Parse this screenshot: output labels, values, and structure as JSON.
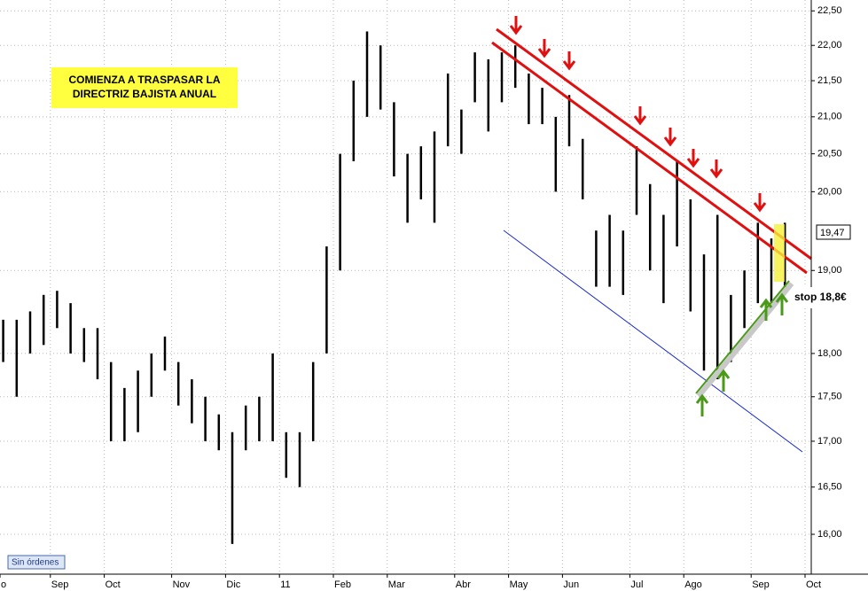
{
  "chart_data": {
    "type": "range",
    "log_scale": true,
    "grid": true,
    "color": "#000000",
    "ylim": [
      15.59,
      22.66
    ],
    "yticks": [
      {
        "value": 22.5,
        "label": "22,50"
      },
      {
        "value": 22,
        "label": "22,00"
      },
      {
        "value": 21.5,
        "label": "21,50"
      },
      {
        "value": 21,
        "label": "21,00"
      },
      {
        "value": 20.5,
        "label": "20,50"
      },
      {
        "value": 20,
        "label": "20,00"
      },
      {
        "value": 19,
        "label": "19,00"
      },
      {
        "value": 18,
        "label": "18,00"
      },
      {
        "value": 17.5,
        "label": "17,50"
      },
      {
        "value": 17,
        "label": "17,00"
      },
      {
        "value": 16.5,
        "label": "16,50"
      },
      {
        "value": 16,
        "label": "16,00"
      }
    ],
    "categories": [
      "o",
      null,
      null,
      null,
      "Sep",
      null,
      null,
      null,
      "Oct",
      null,
      null,
      null,
      null,
      "Nov",
      null,
      null,
      null,
      "Dic",
      null,
      null,
      null,
      "11",
      null,
      null,
      null,
      "Feb",
      null,
      null,
      null,
      "Mar",
      null,
      null,
      null,
      null,
      "Abr",
      null,
      null,
      null,
      "May",
      null,
      null,
      null,
      "Jun",
      null,
      null,
      null,
      null,
      "Jul",
      null,
      null,
      null,
      "Ago",
      null,
      null,
      null,
      null,
      "Sep",
      null,
      null,
      null,
      "Oct"
    ],
    "high": [
      18.4,
      18.4,
      18.5,
      18.7,
      18.75,
      18.6,
      18.3,
      18.3,
      17.9,
      17.6,
      17.8,
      18.0,
      18.2,
      17.9,
      17.7,
      17.5,
      17.3,
      17.1,
      17.4,
      17.5,
      18.0,
      17.1,
      17.1,
      17.9,
      19.3,
      20.5,
      21.5,
      22.2,
      22.0,
      21.2,
      20.5,
      20.6,
      20.8,
      21.6,
      21.1,
      21.9,
      21.8,
      21.9,
      22.0,
      21.6,
      21.4,
      21.0,
      21.3,
      20.7,
      19.5,
      19.7,
      19.5,
      20.6,
      20.1,
      19.7,
      20.4,
      19.9,
      19.2,
      19.7,
      18.7,
      19.0,
      19.6,
      19.4,
      19.6,
      null,
      null
    ],
    "low": [
      17.9,
      17.5,
      18.0,
      18.1,
      18.3,
      18.0,
      17.9,
      17.7,
      17.0,
      17.0,
      17.1,
      17.5,
      17.8,
      17.4,
      17.2,
      17.0,
      16.9,
      15.9,
      16.9,
      17.0,
      17.0,
      16.6,
      16.5,
      17.0,
      18.0,
      19.0,
      20.4,
      21.0,
      21.1,
      20.2,
      19.6,
      19.9,
      19.6,
      20.6,
      20.5,
      21.2,
      20.8,
      21.2,
      21.4,
      20.9,
      20.9,
      20.0,
      20.6,
      19.9,
      18.8,
      18.8,
      18.7,
      19.7,
      19.0,
      18.6,
      19.3,
      18.5,
      17.8,
      17.7,
      17.9,
      18.3,
      18.6,
      18.6,
      18.8,
      null,
      null
    ],
    "annotation": [
      "COMIENZA A TRASPASAR LA",
      "DIRECTRIZ BAJISTA ANUAL"
    ],
    "last_price_label": "19,47",
    "stop_label": "stop 18,8€",
    "status_label": "Sin órdenes"
  }
}
